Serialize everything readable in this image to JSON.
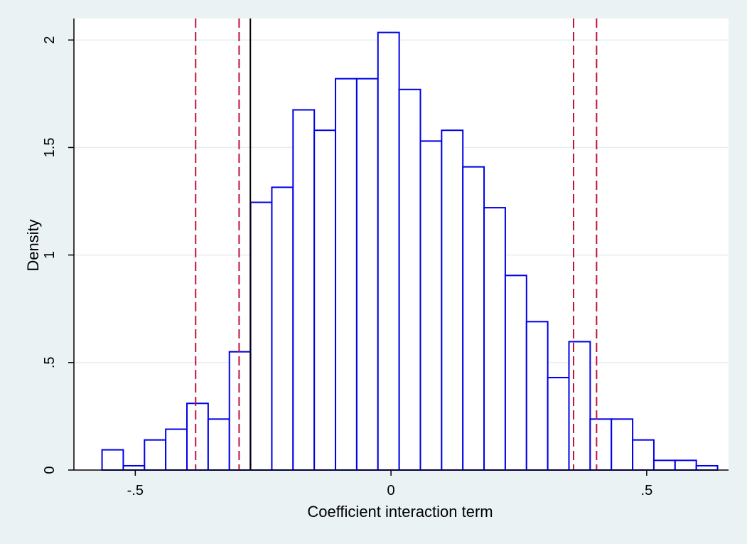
{
  "chart_data": {
    "type": "histogram",
    "xlabel": "Coefficient interaction term",
    "ylabel": "Density",
    "xlim": [
      -0.62,
      0.66
    ],
    "ylim": [
      0,
      2.1
    ],
    "x_ticks": [
      -0.5,
      0,
      0.5
    ],
    "x_tick_labels": [
      "-.5",
      "0",
      ".5"
    ],
    "y_ticks": [
      0,
      0.5,
      1,
      1.5,
      2
    ],
    "y_tick_labels": [
      "0",
      ".5",
      "1",
      "1.5",
      "2"
    ],
    "grid": true,
    "bin_width": 0.0415,
    "bins": [
      {
        "x0": -0.565,
        "x1": -0.5235,
        "density": 0.094
      },
      {
        "x0": -0.5235,
        "x1": -0.482,
        "density": 0.02
      },
      {
        "x0": -0.482,
        "x1": -0.4405,
        "density": 0.14
      },
      {
        "x0": -0.4405,
        "x1": -0.399,
        "density": 0.19
      },
      {
        "x0": -0.399,
        "x1": -0.3575,
        "density": 0.31
      },
      {
        "x0": -0.3575,
        "x1": -0.316,
        "density": 0.237
      },
      {
        "x0": -0.316,
        "x1": -0.2745,
        "density": 0.55
      },
      {
        "x0": -0.2745,
        "x1": -0.233,
        "density": 1.245
      },
      {
        "x0": -0.233,
        "x1": -0.1915,
        "density": 1.315
      },
      {
        "x0": -0.1915,
        "x1": -0.15,
        "density": 1.675
      },
      {
        "x0": -0.15,
        "x1": -0.1085,
        "density": 1.58
      },
      {
        "x0": -0.1085,
        "x1": -0.067,
        "density": 1.82
      },
      {
        "x0": -0.067,
        "x1": -0.0255,
        "density": 1.82
      },
      {
        "x0": -0.0255,
        "x1": 0.016,
        "density": 2.035
      },
      {
        "x0": 0.016,
        "x1": 0.0575,
        "density": 1.77
      },
      {
        "x0": 0.0575,
        "x1": 0.099,
        "density": 1.53
      },
      {
        "x0": 0.099,
        "x1": 0.1405,
        "density": 1.58
      },
      {
        "x0": 0.1405,
        "x1": 0.182,
        "density": 1.41
      },
      {
        "x0": 0.182,
        "x1": 0.2235,
        "density": 1.22
      },
      {
        "x0": 0.2235,
        "x1": 0.265,
        "density": 0.905
      },
      {
        "x0": 0.265,
        "x1": 0.3065,
        "density": 0.69
      },
      {
        "x0": 0.3065,
        "x1": 0.348,
        "density": 0.43
      },
      {
        "x0": 0.348,
        "x1": 0.3895,
        "density": 0.597
      },
      {
        "x0": 0.3895,
        "x1": 0.431,
        "density": 0.237
      },
      {
        "x0": 0.431,
        "x1": 0.4725,
        "density": 0.237
      },
      {
        "x0": 0.4725,
        "x1": 0.514,
        "density": 0.14
      },
      {
        "x0": 0.514,
        "x1": 0.5555,
        "density": 0.045
      },
      {
        "x0": 0.5555,
        "x1": 0.597,
        "density": 0.045
      },
      {
        "x0": 0.597,
        "x1": 0.6385,
        "density": 0.02
      }
    ],
    "reference_lines": [
      {
        "x": -0.382,
        "style": "dashed",
        "color": "#c0143c"
      },
      {
        "x": -0.297,
        "style": "dashed",
        "color": "#c0143c"
      },
      {
        "x": -0.275,
        "style": "solid",
        "color": "#000000"
      },
      {
        "x": 0.357,
        "style": "dashed",
        "color": "#c0143c"
      },
      {
        "x": 0.402,
        "style": "dashed",
        "color": "#c0143c"
      }
    ],
    "colors": {
      "bar_outline": "#0000e6",
      "bar_fill": "#ffffff",
      "plot_background": "#ffffff",
      "outer_background": "#eaf2f3",
      "grid": "#e4eef0"
    }
  }
}
